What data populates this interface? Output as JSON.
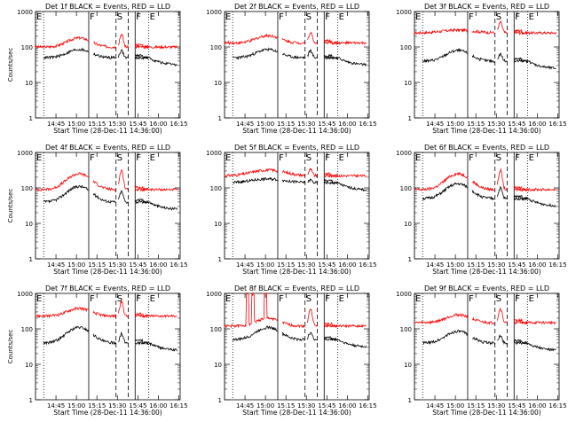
{
  "chart_data": [
    {
      "type": "line",
      "title": "Det 1f BLACK = Events, RED = LLD",
      "xlabel": "Start Time (28-Dec-11 14:36:00)",
      "ylabel": "Counts/sec",
      "yscale": "log",
      "ylim": [
        1,
        1000
      ],
      "yticks": [
        "1",
        "10",
        "100",
        "1000"
      ],
      "xlim_min": [
        -6,
        100
      ],
      "xticks": [
        {
          "v": 9,
          "label": "14:45"
        },
        {
          "v": 24,
          "label": "15:00"
        },
        {
          "v": 39,
          "label": "15:15"
        },
        {
          "v": 54,
          "label": "15:30"
        },
        {
          "v": 69,
          "label": "15:45"
        },
        {
          "v": 84,
          "label": "16:00"
        },
        {
          "v": 99,
          "label": "16:15"
        }
      ],
      "markers": [
        {
          "v": -6,
          "style": "dotted",
          "label": "E"
        },
        {
          "v": 0,
          "style": "dotted",
          "label": ""
        },
        {
          "v": 33,
          "style": "solid",
          "label": "F"
        },
        {
          "v": 53,
          "style": "dashed",
          "label": "S"
        },
        {
          "v": 62,
          "style": "dashed",
          "label": ""
        },
        {
          "v": 67,
          "style": "solid",
          "label": "F"
        },
        {
          "v": 77,
          "style": "dotted",
          "label": "E"
        }
      ],
      "series": [
        {
          "color": "#ff0000",
          "shape": "a",
          "base": 100,
          "peak": 180,
          "flare": 2.3
        },
        {
          "color": "#000000",
          "shape": "a",
          "base": 50,
          "peak": 85,
          "flare": 1.6
        }
      ]
    },
    {
      "type": "line",
      "title": "Det 2f BLACK = Events, RED = LLD",
      "xlabel": "Start Time (28-Dec-11 14:36:00)",
      "ylabel": "",
      "yscale": "log",
      "ylim": [
        1,
        1000
      ],
      "yticks": [
        "1",
        "10",
        "100",
        "1000"
      ],
      "xlim_min": [
        -6,
        100
      ],
      "xticks": [
        {
          "v": 9,
          "label": "14:45"
        },
        {
          "v": 24,
          "label": "15:00"
        },
        {
          "v": 39,
          "label": "15:15"
        },
        {
          "v": 54,
          "label": "15:30"
        },
        {
          "v": 69,
          "label": "15:45"
        },
        {
          "v": 84,
          "label": "16:00"
        },
        {
          "v": 99,
          "label": "16:15"
        }
      ],
      "markers": [
        {
          "v": -6,
          "style": "dotted",
          "label": "E"
        },
        {
          "v": 0,
          "style": "dotted",
          "label": ""
        },
        {
          "v": 33,
          "style": "solid",
          "label": "F"
        },
        {
          "v": 53,
          "style": "dashed",
          "label": "S"
        },
        {
          "v": 62,
          "style": "dashed",
          "label": ""
        },
        {
          "v": 67,
          "style": "solid",
          "label": "F"
        },
        {
          "v": 77,
          "style": "dotted",
          "label": "E"
        }
      ],
      "series": [
        {
          "color": "#ff0000",
          "shape": "a",
          "base": 130,
          "peak": 210,
          "flare": 2.0
        },
        {
          "color": "#000000",
          "shape": "a",
          "base": 50,
          "peak": 85,
          "flare": 1.6
        }
      ]
    },
    {
      "type": "line",
      "title": "Det 3f BLACK = Events, RED = LLD",
      "xlabel": "Start Time (28-Dec-11 14:36:00)",
      "ylabel": "",
      "yscale": "log",
      "ylim": [
        1,
        1000
      ],
      "yticks": [
        "1",
        "10",
        "100",
        "1000"
      ],
      "xlim_min": [
        -6,
        100
      ],
      "xticks": [
        {
          "v": 9,
          "label": "14:45"
        },
        {
          "v": 24,
          "label": "15:00"
        },
        {
          "v": 39,
          "label": "15:15"
        },
        {
          "v": 54,
          "label": "15:30"
        },
        {
          "v": 69,
          "label": "15:45"
        },
        {
          "v": 84,
          "label": "16:00"
        },
        {
          "v": 99,
          "label": "16:15"
        }
      ],
      "markers": [
        {
          "v": -6,
          "style": "dotted",
          "label": "E"
        },
        {
          "v": 0,
          "style": "dotted",
          "label": ""
        },
        {
          "v": 33,
          "style": "solid",
          "label": "F"
        },
        {
          "v": 53,
          "style": "dashed",
          "label": "S"
        },
        {
          "v": 62,
          "style": "dashed",
          "label": ""
        },
        {
          "v": 67,
          "style": "solid",
          "label": "F"
        },
        {
          "v": 77,
          "style": "dotted",
          "label": "E"
        }
      ],
      "series": [
        {
          "color": "#ff0000",
          "shape": "flat",
          "base": 250,
          "peak": 300,
          "flare": 2.0
        },
        {
          "color": "#000000",
          "shape": "a",
          "base": 40,
          "peak": 80,
          "flare": 1.6
        }
      ]
    },
    {
      "type": "line",
      "title": "Det 4f BLACK = Events, RED = LLD",
      "xlabel": "Start Time (28-Dec-11 14:36:00)",
      "ylabel": "Counts/sec",
      "yscale": "log",
      "ylim": [
        1,
        1000
      ],
      "yticks": [
        "1",
        "10",
        "100",
        "1000"
      ],
      "xlim_min": [
        -6,
        100
      ],
      "xticks": [
        {
          "v": 9,
          "label": "14:45"
        },
        {
          "v": 24,
          "label": "15:00"
        },
        {
          "v": 39,
          "label": "15:15"
        },
        {
          "v": 54,
          "label": "15:30"
        },
        {
          "v": 69,
          "label": "15:45"
        },
        {
          "v": 84,
          "label": "16:00"
        },
        {
          "v": 99,
          "label": "16:15"
        }
      ],
      "markers": [
        {
          "v": -6,
          "style": "dotted",
          "label": "E"
        },
        {
          "v": 0,
          "style": "dotted",
          "label": ""
        },
        {
          "v": 33,
          "style": "solid",
          "label": "F"
        },
        {
          "v": 53,
          "style": "dashed",
          "label": "S"
        },
        {
          "v": 62,
          "style": "dashed",
          "label": ""
        },
        {
          "v": 67,
          "style": "solid",
          "label": "F"
        },
        {
          "v": 77,
          "style": "dotted",
          "label": "E"
        }
      ],
      "series": [
        {
          "color": "#ff0000",
          "shape": "a",
          "base": 90,
          "peak": 250,
          "flare": 3.5
        },
        {
          "color": "#000000",
          "shape": "a",
          "base": 40,
          "peak": 110,
          "flare": 2.0
        }
      ]
    },
    {
      "type": "line",
      "title": "Det 5f BLACK = Events, RED = LLD",
      "xlabel": "Start Time (28-Dec-11 14:36:00)",
      "ylabel": "",
      "yscale": "log",
      "ylim": [
        1,
        1000
      ],
      "yticks": [
        "1",
        "10",
        "100",
        "1000"
      ],
      "xlim_min": [
        -6,
        100
      ],
      "xticks": [
        {
          "v": 9,
          "label": "14:45"
        },
        {
          "v": 24,
          "label": "15:00"
        },
        {
          "v": 39,
          "label": "15:15"
        },
        {
          "v": 54,
          "label": "15:30"
        },
        {
          "v": 69,
          "label": "15:45"
        },
        {
          "v": 84,
          "label": "16:00"
        },
        {
          "v": 99,
          "label": "16:15"
        }
      ],
      "markers": [
        {
          "v": -6,
          "style": "dotted",
          "label": "E"
        },
        {
          "v": 0,
          "style": "dotted",
          "label": ""
        },
        {
          "v": 33,
          "style": "solid",
          "label": "F"
        },
        {
          "v": 53,
          "style": "dashed",
          "label": "S"
        },
        {
          "v": 62,
          "style": "dashed",
          "label": ""
        },
        {
          "v": 67,
          "style": "solid",
          "label": "F"
        },
        {
          "v": 77,
          "style": "dotted",
          "label": "E"
        }
      ],
      "series": [
        {
          "color": "#ff0000",
          "shape": "flat",
          "base": 220,
          "peak": 320,
          "flare": 1.5
        },
        {
          "color": "#000000",
          "shape": "flat",
          "base": 140,
          "peak": 180,
          "flare": 1.2
        }
      ]
    },
    {
      "type": "line",
      "title": "Det 6f BLACK = Events, RED = LLD",
      "xlabel": "Start Time (28-Dec-11 14:36:00)",
      "ylabel": "",
      "yscale": "log",
      "ylim": [
        1,
        1000
      ],
      "yticks": [
        "1",
        "10",
        "100",
        "1000"
      ],
      "xlim_min": [
        -6,
        100
      ],
      "xticks": [
        {
          "v": 9,
          "label": "14:45"
        },
        {
          "v": 24,
          "label": "15:00"
        },
        {
          "v": 39,
          "label": "15:15"
        },
        {
          "v": 54,
          "label": "15:30"
        },
        {
          "v": 69,
          "label": "15:45"
        },
        {
          "v": 84,
          "label": "16:00"
        },
        {
          "v": 99,
          "label": "16:15"
        }
      ],
      "markers": [
        {
          "v": -6,
          "style": "dotted",
          "label": "E"
        },
        {
          "v": 0,
          "style": "dotted",
          "label": ""
        },
        {
          "v": 33,
          "style": "solid",
          "label": "F"
        },
        {
          "v": 53,
          "style": "dashed",
          "label": "S"
        },
        {
          "v": 62,
          "style": "dashed",
          "label": ""
        },
        {
          "v": 67,
          "style": "solid",
          "label": "F"
        },
        {
          "v": 77,
          "style": "dotted",
          "label": "E"
        }
      ],
      "series": [
        {
          "color": "#ff0000",
          "shape": "a",
          "base": 90,
          "peak": 250,
          "flare": 3.5
        },
        {
          "color": "#000000",
          "shape": "a",
          "base": 50,
          "peak": 130,
          "flare": 2.0
        }
      ]
    },
    {
      "type": "line",
      "title": "Det 7f BLACK = Events, RED = LLD",
      "xlabel": "Start Time (28-Dec-11 14:36:00)",
      "ylabel": "Counts/sec",
      "yscale": "log",
      "ylim": [
        1,
        1000
      ],
      "yticks": [
        "1",
        "10",
        "100",
        "1000"
      ],
      "xlim_min": [
        -6,
        100
      ],
      "xticks": [
        {
          "v": 9,
          "label": "14:45"
        },
        {
          "v": 24,
          "label": "15:00"
        },
        {
          "v": 39,
          "label": "15:15"
        },
        {
          "v": 54,
          "label": "15:30"
        },
        {
          "v": 69,
          "label": "15:45"
        },
        {
          "v": 84,
          "label": "16:00"
        },
        {
          "v": 99,
          "label": "16:15"
        }
      ],
      "markers": [
        {
          "v": -6,
          "style": "dotted",
          "label": "E"
        },
        {
          "v": 0,
          "style": "dotted",
          "label": ""
        },
        {
          "v": 33,
          "style": "solid",
          "label": "F"
        },
        {
          "v": 53,
          "style": "dashed",
          "label": "S"
        },
        {
          "v": 62,
          "style": "dashed",
          "label": ""
        },
        {
          "v": 67,
          "style": "solid",
          "label": "F"
        },
        {
          "v": 77,
          "style": "dotted",
          "label": "E"
        }
      ],
      "series": [
        {
          "color": "#ff0000",
          "shape": "a",
          "base": 230,
          "peak": 380,
          "flare": 2.5
        },
        {
          "color": "#000000",
          "shape": "a",
          "base": 40,
          "peak": 110,
          "flare": 1.8
        }
      ]
    },
    {
      "type": "line",
      "title": "Det 8f BLACK = Events, RED = LLD",
      "xlabel": "Start Time (28-Dec-11 14:36:00)",
      "ylabel": "",
      "yscale": "log",
      "ylim": [
        1,
        1000
      ],
      "yticks": [
        "1",
        "10",
        "100",
        "1000"
      ],
      "xlim_min": [
        -6,
        100
      ],
      "xticks": [
        {
          "v": 9,
          "label": "14:45"
        },
        {
          "v": 24,
          "label": "15:00"
        },
        {
          "v": 39,
          "label": "15:15"
        },
        {
          "v": 54,
          "label": "15:30"
        },
        {
          "v": 69,
          "label": "15:45"
        },
        {
          "v": 84,
          "label": "16:00"
        },
        {
          "v": 99,
          "label": "16:15"
        }
      ],
      "markers": [
        {
          "v": -6,
          "style": "dotted",
          "label": "E"
        },
        {
          "v": 0,
          "style": "dotted",
          "label": ""
        },
        {
          "v": 33,
          "style": "solid",
          "label": "F"
        },
        {
          "v": 53,
          "style": "dashed",
          "label": "S"
        },
        {
          "v": 62,
          "style": "dashed",
          "label": ""
        },
        {
          "v": 67,
          "style": "solid",
          "label": "F"
        },
        {
          "v": 77,
          "style": "dotted",
          "label": "E"
        }
      ],
      "series": [
        {
          "color": "#ff0000",
          "shape": "a",
          "base": 120,
          "peak": 200,
          "flare": 3.0,
          "spikes": true
        },
        {
          "color": "#000000",
          "shape": "a",
          "base": 50,
          "peak": 110,
          "flare": 1.6
        }
      ]
    },
    {
      "type": "line",
      "title": "Det 9f BLACK = Events, RED = LLD",
      "xlabel": "Start Time (28-Dec-11 14:36:00)",
      "ylabel": "",
      "yscale": "log",
      "ylim": [
        1,
        1000
      ],
      "yticks": [
        "1",
        "10",
        "100",
        "1000"
      ],
      "xlim_min": [
        -6,
        100
      ],
      "xticks": [
        {
          "v": 9,
          "label": "14:45"
        },
        {
          "v": 24,
          "label": "15:00"
        },
        {
          "v": 39,
          "label": "15:15"
        },
        {
          "v": 54,
          "label": "15:30"
        },
        {
          "v": 69,
          "label": "15:45"
        },
        {
          "v": 84,
          "label": "16:00"
        },
        {
          "v": 99,
          "label": "16:15"
        }
      ],
      "markers": [
        {
          "v": -6,
          "style": "dotted",
          "label": "E"
        },
        {
          "v": 0,
          "style": "dotted",
          "label": ""
        },
        {
          "v": 33,
          "style": "solid",
          "label": "F"
        },
        {
          "v": 53,
          "style": "dashed",
          "label": "S"
        },
        {
          "v": 62,
          "style": "dashed",
          "label": ""
        },
        {
          "v": 67,
          "style": "solid",
          "label": "F"
        },
        {
          "v": 77,
          "style": "dotted",
          "label": "E"
        }
      ],
      "series": [
        {
          "color": "#ff0000",
          "shape": "a",
          "base": 150,
          "peak": 250,
          "flare": 2.5
        },
        {
          "color": "#000000",
          "shape": "a",
          "base": 40,
          "peak": 85,
          "flare": 1.6
        }
      ]
    }
  ]
}
